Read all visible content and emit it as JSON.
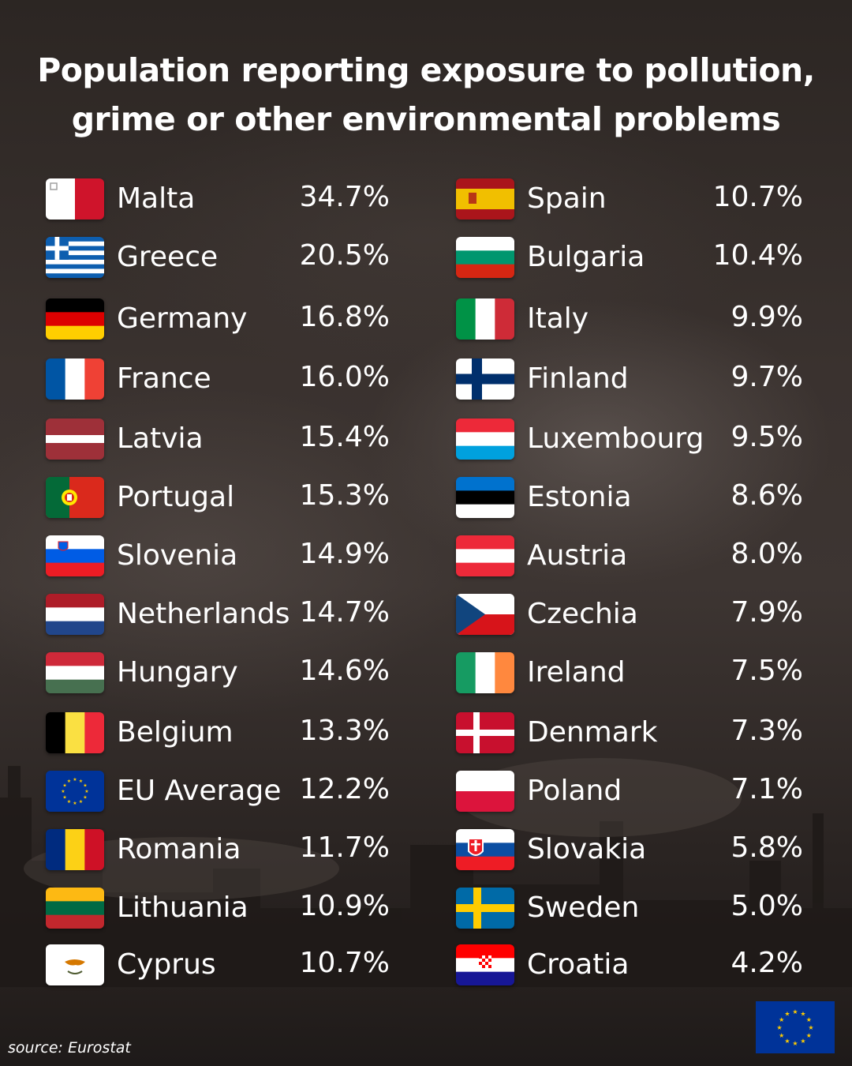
{
  "title": {
    "line1": "Population reporting exposure to pollution,",
    "line2": "grime or other environmental problems"
  },
  "source": "source: Eurostat",
  "chart_data": {
    "type": "table",
    "title": "Population reporting exposure to pollution, grime or other environmental problems",
    "columns": [
      [
        {
          "country": "Malta",
          "value": 34.7,
          "label": "34.7%",
          "flag": "malta"
        },
        {
          "country": "Greece",
          "value": 20.5,
          "label": "20.5%",
          "flag": "greece"
        },
        {
          "country": "Germany",
          "value": 16.8,
          "label": "16.8%",
          "flag": "germany"
        },
        {
          "country": "France",
          "value": 16.0,
          "label": "16.0%",
          "flag": "france"
        },
        {
          "country": "Latvia",
          "value": 15.4,
          "label": "15.4%",
          "flag": "latvia"
        },
        {
          "country": "Portugal",
          "value": 15.3,
          "label": "15.3%",
          "flag": "portugal"
        },
        {
          "country": "Slovenia",
          "value": 14.9,
          "label": "14.9%",
          "flag": "slovenia"
        },
        {
          "country": "Netherlands",
          "value": 14.7,
          "label": "14.7%",
          "flag": "netherlands"
        },
        {
          "country": "Hungary",
          "value": 14.6,
          "label": "14.6%",
          "flag": "hungary"
        },
        {
          "country": "Belgium",
          "value": 13.3,
          "label": "13.3%",
          "flag": "belgium"
        },
        {
          "country": "EU Average",
          "value": 12.2,
          "label": "12.2%",
          "flag": "eu"
        },
        {
          "country": "Romania",
          "value": 11.7,
          "label": "11.7%",
          "flag": "romania"
        },
        {
          "country": "Lithuania",
          "value": 10.9,
          "label": "10.9%",
          "flag": "lithuania"
        },
        {
          "country": "Cyprus",
          "value": 10.7,
          "label": "10.7%",
          "flag": "cyprus"
        }
      ],
      [
        {
          "country": "Spain",
          "value": 10.7,
          "label": "10.7%",
          "flag": "spain"
        },
        {
          "country": "Bulgaria",
          "value": 10.4,
          "label": "10.4%",
          "flag": "bulgaria"
        },
        {
          "country": "Italy",
          "value": 9.9,
          "label": "9.9%",
          "flag": "italy"
        },
        {
          "country": "Finland",
          "value": 9.7,
          "label": "9.7%",
          "flag": "finland"
        },
        {
          "country": "Luxembourg",
          "value": 9.5,
          "label": "9.5%",
          "flag": "luxembourg"
        },
        {
          "country": "Estonia",
          "value": 8.6,
          "label": "8.6%",
          "flag": "estonia"
        },
        {
          "country": "Austria",
          "value": 8.0,
          "label": "8.0%",
          "flag": "austria"
        },
        {
          "country": "Czechia",
          "value": 7.9,
          "label": "7.9%",
          "flag": "czechia"
        },
        {
          "country": "Ireland",
          "value": 7.5,
          "label": "7.5%",
          "flag": "ireland"
        },
        {
          "country": "Denmark",
          "value": 7.3,
          "label": "7.3%",
          "flag": "denmark"
        },
        {
          "country": "Poland",
          "value": 7.1,
          "label": "7.1%",
          "flag": "poland"
        },
        {
          "country": "Slovakia",
          "value": 5.8,
          "label": "5.8%",
          "flag": "slovakia"
        },
        {
          "country": "Sweden",
          "value": 5.0,
          "label": "5.0%",
          "flag": "sweden"
        },
        {
          "country": "Croatia",
          "value": 4.2,
          "label": "4.2%",
          "flag": "croatia"
        }
      ]
    ]
  },
  "colors": {
    "text": "#ffffff",
    "background": "#3a322f",
    "eu_blue": "#003399",
    "eu_yellow": "#ffcc00"
  },
  "icons": {
    "eu_logo": "eu-flag-icon"
  }
}
